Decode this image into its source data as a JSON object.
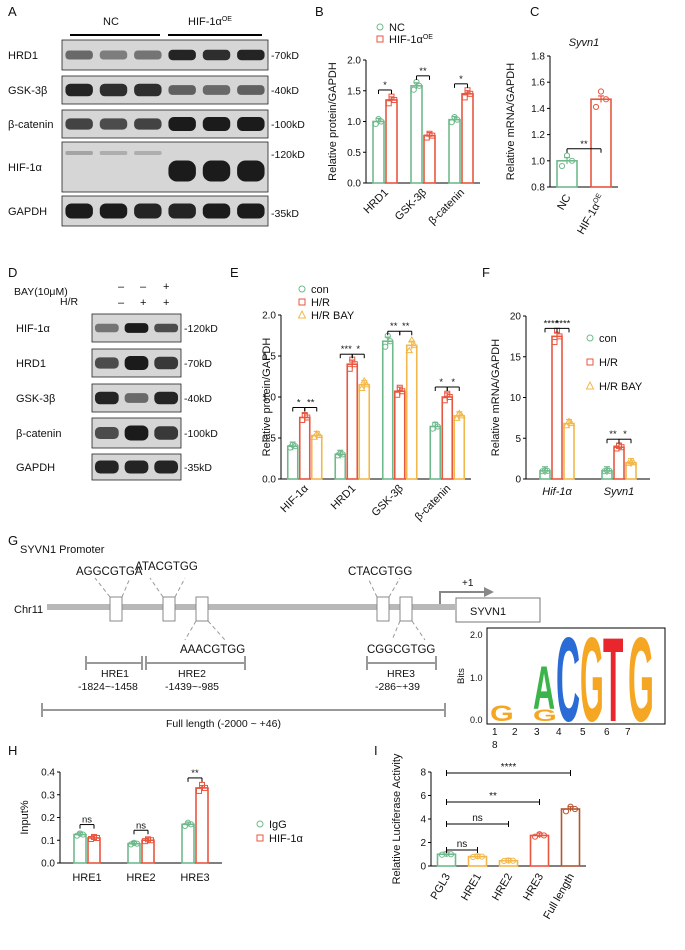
{
  "panels": {
    "A": {
      "letter": "A",
      "groups": [
        "NC",
        "HIF-1α",
        "OE"
      ],
      "proteins": [
        "HRD1",
        "GSK-3β",
        "β-catenin",
        "HIF-1α",
        "GAPDH"
      ],
      "sizes": [
        "-70kD",
        "-40kD",
        "-100kD",
        "-120kD",
        "-35kD"
      ]
    },
    "B": {
      "letter": "B"
    },
    "C": {
      "letter": "C"
    },
    "D": {
      "letter": "D",
      "bay_label": "BAY(10μM)",
      "hr_label": "H/R",
      "bay_signs": [
        "–",
        "–",
        "+"
      ],
      "hr_signs": [
        "–",
        "+",
        "+"
      ],
      "proteins": [
        "HIF-1α",
        "HRD1",
        "GSK-3β",
        "β-catenin",
        "GAPDH"
      ],
      "sizes": [
        "-120kD",
        "-70kD",
        "-40kD",
        "-100kD",
        "-35kD"
      ]
    },
    "E": {
      "letter": "E"
    },
    "F": {
      "letter": "F"
    },
    "G": {
      "letter": "G",
      "title": "SYVN1 Promoter",
      "chrom": "Chr11",
      "gene": "SYVN1",
      "tss": "+1",
      "motifs": [
        "AGGCGTGA",
        "ATACGTGG",
        "AAACGTGG",
        "CTACGTGG",
        "CGGCGTGG"
      ],
      "regions": [
        {
          "name": "HRE1",
          "range": "-1824~-1458"
        },
        {
          "name": "HRE2",
          "range": "-1439~-985"
        },
        {
          "name": "HRE3",
          "range": "-286~+39"
        }
      ],
      "full_length": "Full length (-2000 ~ +46)",
      "logo": {
        "ylabel": "Bits",
        "yticks": [
          "0.0",
          "1.0",
          "2.0"
        ],
        "positions": [
          "1",
          "2",
          "3",
          "4",
          "5",
          "6",
          "7",
          "8"
        ],
        "letters": [
          "G",
          "A",
          "C",
          "G",
          "T",
          "G"
        ],
        "colors": {
          "A": "#3cb44b",
          "C": "#2b6bd6",
          "G": "#f5a623",
          "T": "#e8262b"
        }
      }
    },
    "H": {
      "letter": "H"
    },
    "I": {
      "letter": "I"
    }
  },
  "chart_data": [
    {
      "id": "B",
      "type": "bar",
      "ylabel": "Relative protein/GAPDH",
      "ylim": [
        0,
        2.0
      ],
      "yticks": [
        "0.0",
        "0.5",
        "1.0",
        "1.5",
        "2.0"
      ],
      "categories": [
        "HRD1",
        "GSK-3β",
        "β-catenin"
      ],
      "series": [
        {
          "name": "NC",
          "color": "#6fba8c",
          "values": [
            1.0,
            1.58,
            1.03
          ]
        },
        {
          "name": "HIF-1α",
          "sup": "OE",
          "color": "#e8563f",
          "values": [
            1.35,
            0.77,
            1.45
          ]
        }
      ],
      "significance": [
        "*",
        "**",
        "*"
      ]
    },
    {
      "id": "C",
      "type": "bar",
      "title": "Syvn1",
      "ylabel": "Relative mRNA/GAPDH",
      "ylim": [
        0.8,
        1.8
      ],
      "yticks": [
        "0.8",
        "1.0",
        "1.2",
        "1.4",
        "1.6",
        "1.8"
      ],
      "categories": [
        "NC",
        "HIF-1α"
      ],
      "category_sup": [
        "",
        "OE"
      ],
      "values": [
        1.0,
        1.47
      ],
      "colors": [
        "#6fba8c",
        "#e8563f"
      ],
      "significance": [
        "**"
      ]
    },
    {
      "id": "E",
      "type": "bar",
      "ylabel": "Relative protein/GAPDH",
      "ylim": [
        0,
        2.0
      ],
      "yticks": [
        "0.0",
        "0.5",
        "1.0",
        "1.5",
        "2.0"
      ],
      "categories": [
        "HIF-1α",
        "HRD1",
        "GSK-3β",
        "β-catenin"
      ],
      "series": [
        {
          "name": "con",
          "color": "#6fba8c",
          "values": [
            0.4,
            0.3,
            1.68,
            0.64
          ]
        },
        {
          "name": "H/R",
          "color": "#e8563f",
          "values": [
            0.75,
            1.4,
            1.07,
            1.0
          ]
        },
        {
          "name": "H/R BAY",
          "color": "#f2b84b",
          "values": [
            0.53,
            1.15,
            1.63,
            0.77
          ]
        }
      ],
      "significance": [
        [
          "*",
          "**"
        ],
        [
          "***",
          "*"
        ],
        [
          "**",
          "**"
        ],
        [
          "*",
          "*"
        ]
      ]
    },
    {
      "id": "F",
      "type": "bar",
      "ylabel": "Relative mRNA/GAPDH",
      "ylim": [
        0,
        20
      ],
      "yticks": [
        "0",
        "5",
        "10",
        "15",
        "20"
      ],
      "categories": [
        "Hif-1α",
        "Syvn1"
      ],
      "series": [
        {
          "name": "con",
          "color": "#6fba8c",
          "values": [
            1.0,
            1.0
          ]
        },
        {
          "name": "H/R",
          "color": "#e8563f",
          "values": [
            17.5,
            3.9
          ]
        },
        {
          "name": "H/R BAY",
          "color": "#f2b84b",
          "values": [
            6.8,
            2.0
          ]
        }
      ],
      "significance": [
        [
          "****",
          "****"
        ],
        [
          "**",
          "*"
        ]
      ]
    },
    {
      "id": "H",
      "type": "bar",
      "ylabel": "Input%",
      "ylim": [
        0,
        0.4
      ],
      "yticks": [
        "0.0",
        "0.1",
        "0.2",
        "0.3",
        "0.4"
      ],
      "categories": [
        "HRE1",
        "HRE2",
        "HRE3"
      ],
      "series": [
        {
          "name": "IgG",
          "color": "#6fba8c",
          "values": [
            0.125,
            0.085,
            0.17
          ]
        },
        {
          "name": "HIF-1α",
          "color": "#e8563f",
          "values": [
            0.11,
            0.1,
            0.33
          ]
        }
      ],
      "significance": [
        "ns",
        "ns",
        "**"
      ]
    },
    {
      "id": "I",
      "type": "bar",
      "ylabel": "Relative  Luciferase Activity",
      "ylim": [
        0,
        8
      ],
      "yticks": [
        "0",
        "2",
        "4",
        "6",
        "8"
      ],
      "categories": [
        "PGL3",
        "HRE1",
        "HRE2",
        "HRE3",
        "Full length"
      ],
      "values": [
        1.0,
        0.8,
        0.45,
        2.6,
        4.85
      ],
      "colors": [
        "#6fba8c",
        "#f2b84b",
        "#f2b84b",
        "#e8563f",
        "#b5552f"
      ],
      "significance": [
        {
          "to": 1,
          "label": "ns"
        },
        {
          "to": 2,
          "label": "ns"
        },
        {
          "to": 3,
          "label": "**"
        },
        {
          "to": 4,
          "label": "****"
        }
      ]
    }
  ]
}
